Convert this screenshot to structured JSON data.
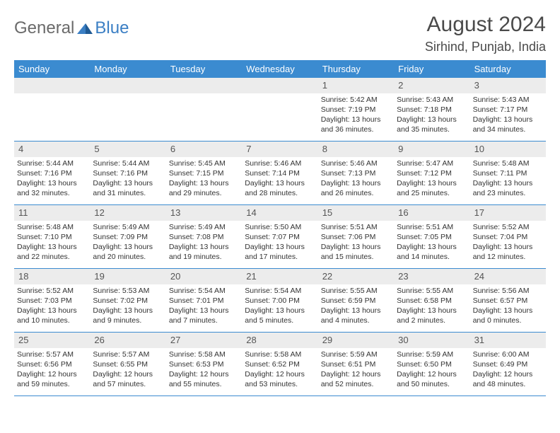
{
  "brand": {
    "part1": "General",
    "part2": "Blue"
  },
  "title": "August 2024",
  "location": "Sirhind, Punjab, India",
  "colors": {
    "header_bg": "#3b8bd0",
    "header_text": "#ffffff",
    "daynum_bg": "#ececec",
    "rule": "#3b8bd0",
    "text": "#333333",
    "logo_gray": "#6a6a6a",
    "logo_blue": "#3b7fc4"
  },
  "layout": {
    "cols": 7,
    "rows": 5,
    "cell_fontsize_pt": 8,
    "title_fontsize_pt": 22,
    "location_fontsize_pt": 14
  },
  "dow": [
    "Sunday",
    "Monday",
    "Tuesday",
    "Wednesday",
    "Thursday",
    "Friday",
    "Saturday"
  ],
  "weeks": [
    [
      {
        "empty": true
      },
      {
        "empty": true
      },
      {
        "empty": true
      },
      {
        "empty": true
      },
      {
        "n": "1",
        "sr": "Sunrise: 5:42 AM",
        "ss": "Sunset: 7:19 PM",
        "d1": "Daylight: 13 hours",
        "d2": "and 36 minutes."
      },
      {
        "n": "2",
        "sr": "Sunrise: 5:43 AM",
        "ss": "Sunset: 7:18 PM",
        "d1": "Daylight: 13 hours",
        "d2": "and 35 minutes."
      },
      {
        "n": "3",
        "sr": "Sunrise: 5:43 AM",
        "ss": "Sunset: 7:17 PM",
        "d1": "Daylight: 13 hours",
        "d2": "and 34 minutes."
      }
    ],
    [
      {
        "n": "4",
        "sr": "Sunrise: 5:44 AM",
        "ss": "Sunset: 7:16 PM",
        "d1": "Daylight: 13 hours",
        "d2": "and 32 minutes."
      },
      {
        "n": "5",
        "sr": "Sunrise: 5:44 AM",
        "ss": "Sunset: 7:16 PM",
        "d1": "Daylight: 13 hours",
        "d2": "and 31 minutes."
      },
      {
        "n": "6",
        "sr": "Sunrise: 5:45 AM",
        "ss": "Sunset: 7:15 PM",
        "d1": "Daylight: 13 hours",
        "d2": "and 29 minutes."
      },
      {
        "n": "7",
        "sr": "Sunrise: 5:46 AM",
        "ss": "Sunset: 7:14 PM",
        "d1": "Daylight: 13 hours",
        "d2": "and 28 minutes."
      },
      {
        "n": "8",
        "sr": "Sunrise: 5:46 AM",
        "ss": "Sunset: 7:13 PM",
        "d1": "Daylight: 13 hours",
        "d2": "and 26 minutes."
      },
      {
        "n": "9",
        "sr": "Sunrise: 5:47 AM",
        "ss": "Sunset: 7:12 PM",
        "d1": "Daylight: 13 hours",
        "d2": "and 25 minutes."
      },
      {
        "n": "10",
        "sr": "Sunrise: 5:48 AM",
        "ss": "Sunset: 7:11 PM",
        "d1": "Daylight: 13 hours",
        "d2": "and 23 minutes."
      }
    ],
    [
      {
        "n": "11",
        "sr": "Sunrise: 5:48 AM",
        "ss": "Sunset: 7:10 PM",
        "d1": "Daylight: 13 hours",
        "d2": "and 22 minutes."
      },
      {
        "n": "12",
        "sr": "Sunrise: 5:49 AM",
        "ss": "Sunset: 7:09 PM",
        "d1": "Daylight: 13 hours",
        "d2": "and 20 minutes."
      },
      {
        "n": "13",
        "sr": "Sunrise: 5:49 AM",
        "ss": "Sunset: 7:08 PM",
        "d1": "Daylight: 13 hours",
        "d2": "and 19 minutes."
      },
      {
        "n": "14",
        "sr": "Sunrise: 5:50 AM",
        "ss": "Sunset: 7:07 PM",
        "d1": "Daylight: 13 hours",
        "d2": "and 17 minutes."
      },
      {
        "n": "15",
        "sr": "Sunrise: 5:51 AM",
        "ss": "Sunset: 7:06 PM",
        "d1": "Daylight: 13 hours",
        "d2": "and 15 minutes."
      },
      {
        "n": "16",
        "sr": "Sunrise: 5:51 AM",
        "ss": "Sunset: 7:05 PM",
        "d1": "Daylight: 13 hours",
        "d2": "and 14 minutes."
      },
      {
        "n": "17",
        "sr": "Sunrise: 5:52 AM",
        "ss": "Sunset: 7:04 PM",
        "d1": "Daylight: 13 hours",
        "d2": "and 12 minutes."
      }
    ],
    [
      {
        "n": "18",
        "sr": "Sunrise: 5:52 AM",
        "ss": "Sunset: 7:03 PM",
        "d1": "Daylight: 13 hours",
        "d2": "and 10 minutes."
      },
      {
        "n": "19",
        "sr": "Sunrise: 5:53 AM",
        "ss": "Sunset: 7:02 PM",
        "d1": "Daylight: 13 hours",
        "d2": "and 9 minutes."
      },
      {
        "n": "20",
        "sr": "Sunrise: 5:54 AM",
        "ss": "Sunset: 7:01 PM",
        "d1": "Daylight: 13 hours",
        "d2": "and 7 minutes."
      },
      {
        "n": "21",
        "sr": "Sunrise: 5:54 AM",
        "ss": "Sunset: 7:00 PM",
        "d1": "Daylight: 13 hours",
        "d2": "and 5 minutes."
      },
      {
        "n": "22",
        "sr": "Sunrise: 5:55 AM",
        "ss": "Sunset: 6:59 PM",
        "d1": "Daylight: 13 hours",
        "d2": "and 4 minutes."
      },
      {
        "n": "23",
        "sr": "Sunrise: 5:55 AM",
        "ss": "Sunset: 6:58 PM",
        "d1": "Daylight: 13 hours",
        "d2": "and 2 minutes."
      },
      {
        "n": "24",
        "sr": "Sunrise: 5:56 AM",
        "ss": "Sunset: 6:57 PM",
        "d1": "Daylight: 13 hours",
        "d2": "and 0 minutes."
      }
    ],
    [
      {
        "n": "25",
        "sr": "Sunrise: 5:57 AM",
        "ss": "Sunset: 6:56 PM",
        "d1": "Daylight: 12 hours",
        "d2": "and 59 minutes."
      },
      {
        "n": "26",
        "sr": "Sunrise: 5:57 AM",
        "ss": "Sunset: 6:55 PM",
        "d1": "Daylight: 12 hours",
        "d2": "and 57 minutes."
      },
      {
        "n": "27",
        "sr": "Sunrise: 5:58 AM",
        "ss": "Sunset: 6:53 PM",
        "d1": "Daylight: 12 hours",
        "d2": "and 55 minutes."
      },
      {
        "n": "28",
        "sr": "Sunrise: 5:58 AM",
        "ss": "Sunset: 6:52 PM",
        "d1": "Daylight: 12 hours",
        "d2": "and 53 minutes."
      },
      {
        "n": "29",
        "sr": "Sunrise: 5:59 AM",
        "ss": "Sunset: 6:51 PM",
        "d1": "Daylight: 12 hours",
        "d2": "and 52 minutes."
      },
      {
        "n": "30",
        "sr": "Sunrise: 5:59 AM",
        "ss": "Sunset: 6:50 PM",
        "d1": "Daylight: 12 hours",
        "d2": "and 50 minutes."
      },
      {
        "n": "31",
        "sr": "Sunrise: 6:00 AM",
        "ss": "Sunset: 6:49 PM",
        "d1": "Daylight: 12 hours",
        "d2": "and 48 minutes."
      }
    ]
  ]
}
